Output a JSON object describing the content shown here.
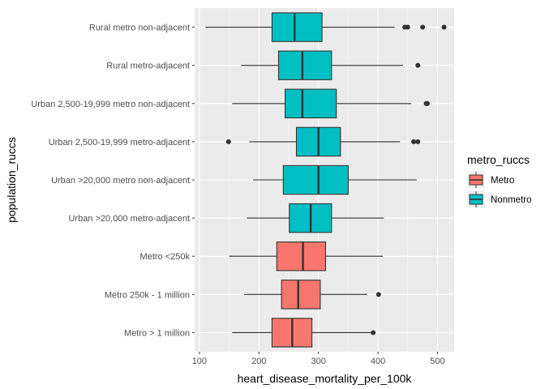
{
  "chart_data": {
    "type": "boxplot",
    "orientation": "horizontal",
    "xlabel": "heart_disease_mortality_per_100k",
    "ylabel": "population_ruccs",
    "xlim": [
      92,
      528
    ],
    "x_ticks": [
      100,
      200,
      300,
      400,
      500
    ],
    "grid": true,
    "legend": {
      "title": "metro_ruccs",
      "position": "right",
      "entries": [
        {
          "label": "Metro",
          "color": "#F8766D"
        },
        {
          "label": "Nonmetro",
          "color": "#00BFC4"
        }
      ]
    },
    "categories": [
      {
        "label": "Rural metro non-adjacent",
        "group": "Nonmetro",
        "whisker_low": 110,
        "q1": 222,
        "median": 260,
        "q3": 306,
        "whisker_high": 428,
        "outliers": [
          445,
          450,
          475,
          511
        ]
      },
      {
        "label": "Rural metro-adjacent",
        "group": "Nonmetro",
        "whisker_low": 170,
        "q1": 233,
        "median": 273,
        "q3": 322,
        "whisker_high": 442,
        "outliers": [
          467
        ]
      },
      {
        "label": "Urban 2,500-19,999 metro non-adjacent",
        "group": "Nonmetro",
        "whisker_low": 155,
        "q1": 244,
        "median": 273,
        "q3": 330,
        "whisker_high": 456,
        "outliers": [
          481,
          483
        ]
      },
      {
        "label": "Urban 2,500-19,999 metro-adjacent",
        "group": "Nonmetro",
        "whisker_low": 184,
        "q1": 263,
        "median": 300,
        "q3": 337,
        "whisker_high": 437,
        "outliers": [
          149,
          460,
          467
        ]
      },
      {
        "label": "Urban >20,000 metro non-adjacent",
        "group": "Nonmetro",
        "whisker_low": 190,
        "q1": 241,
        "median": 300,
        "q3": 350,
        "whisker_high": 465,
        "outliers": []
      },
      {
        "label": "Urban >20,000 metro-adjacent",
        "group": "Nonmetro",
        "whisker_low": 180,
        "q1": 251,
        "median": 287,
        "q3": 322,
        "whisker_high": 410,
        "outliers": []
      },
      {
        "label": "Metro <250k",
        "group": "Metro",
        "whisker_low": 150,
        "q1": 230,
        "median": 274,
        "q3": 312,
        "whisker_high": 408,
        "outliers": []
      },
      {
        "label": "Metro 250k - 1 million",
        "group": "Metro",
        "whisker_low": 175,
        "q1": 238,
        "median": 266,
        "q3": 303,
        "whisker_high": 382,
        "outliers": [
          401
        ]
      },
      {
        "label": "Metro > 1 million",
        "group": "Metro",
        "whisker_low": 155,
        "q1": 222,
        "median": 256,
        "q3": 289,
        "whisker_high": 390,
        "outliers": [
          392
        ]
      }
    ]
  }
}
